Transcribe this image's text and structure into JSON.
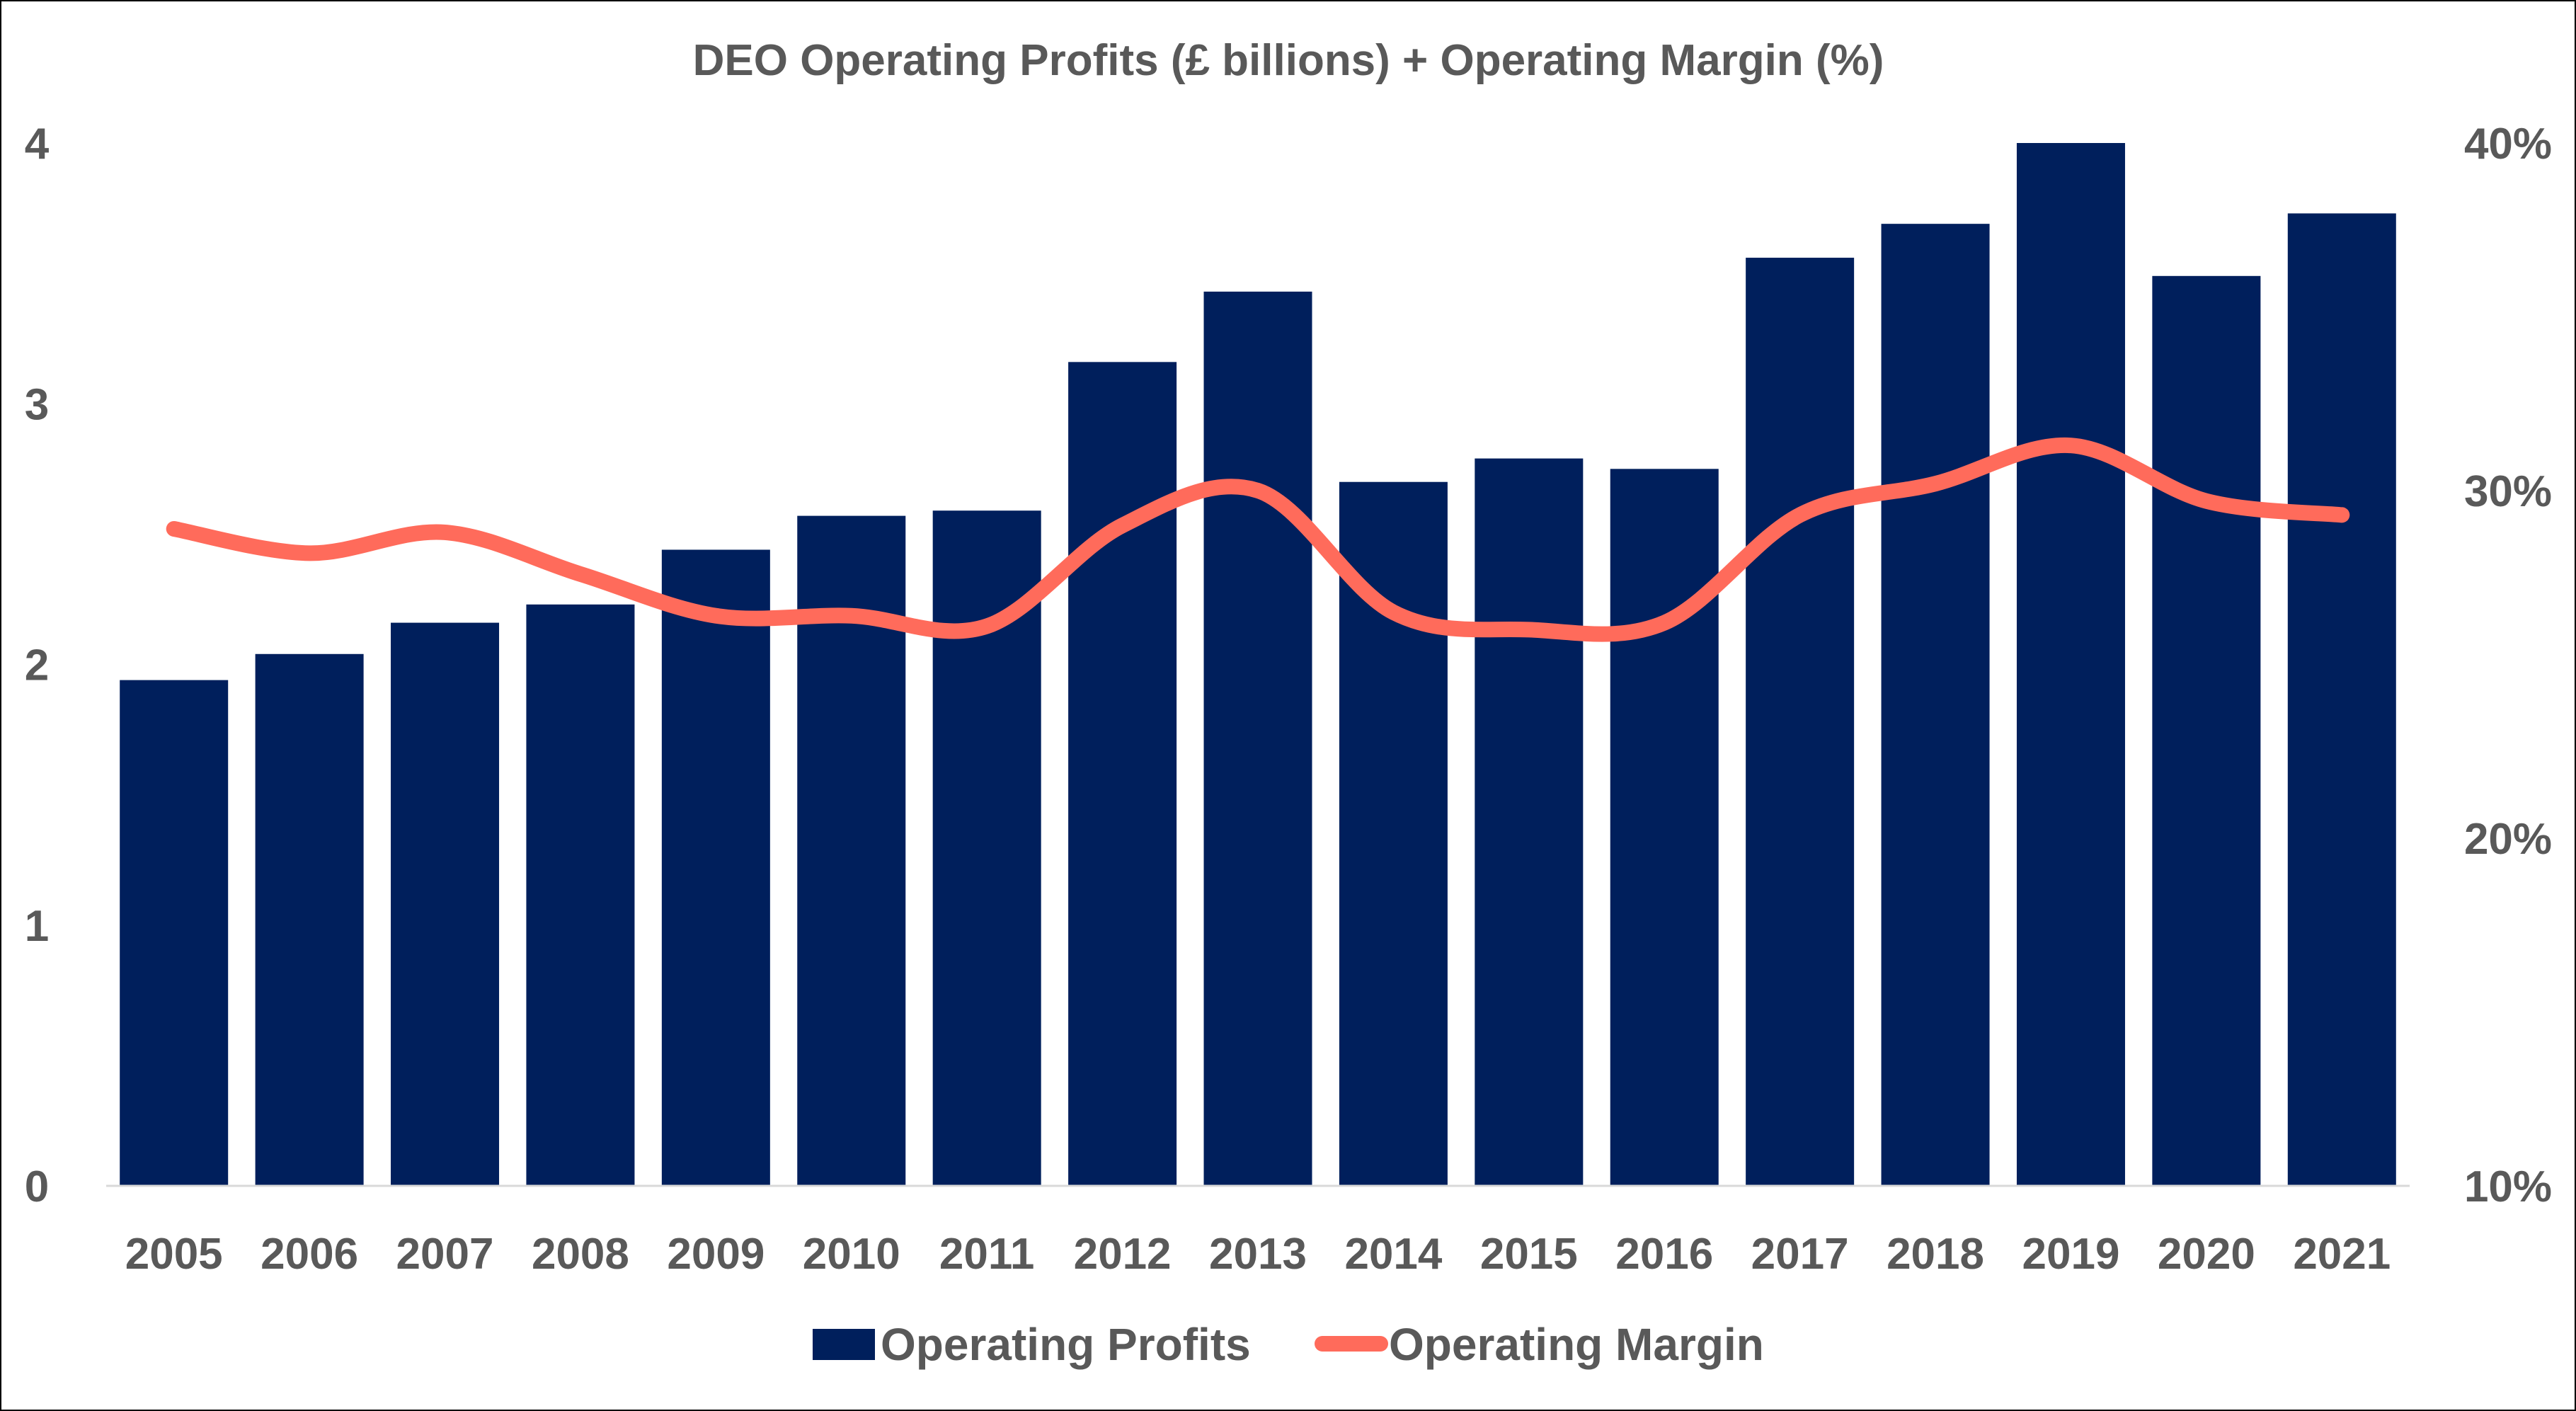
{
  "chart_data": {
    "type": "bar+line",
    "title": "DEO Operating Profits (£ billions) + Operating Margin (%)",
    "categories": [
      "2005",
      "2006",
      "2007",
      "2008",
      "2009",
      "2010",
      "2011",
      "2012",
      "2013",
      "2014",
      "2015",
      "2016",
      "2017",
      "2018",
      "2019",
      "2020",
      "2021"
    ],
    "series": [
      {
        "name": "Operating Profits",
        "type": "bar",
        "axis": "left",
        "color": "#001F5C",
        "values": [
          1.94,
          2.04,
          2.16,
          2.23,
          2.44,
          2.57,
          2.59,
          3.16,
          3.43,
          2.7,
          2.79,
          2.75,
          3.56,
          3.69,
          4.0,
          3.49,
          3.73
        ]
      },
      {
        "name": "Operating Margin",
        "type": "line",
        "axis": "right",
        "color": "#FF6B5B",
        "values": [
          28.9,
          28.2,
          28.8,
          27.6,
          26.4,
          26.4,
          26.1,
          29.0,
          30.0,
          26.5,
          26.0,
          26.2,
          29.3,
          30.2,
          31.3,
          29.7,
          29.3
        ]
      }
    ],
    "y_left": {
      "ticks": [
        0,
        1,
        2,
        3,
        4
      ],
      "tick_labels": [
        "0",
        "1",
        "2",
        "3",
        "4"
      ],
      "range": [
        0,
        4
      ]
    },
    "y_right": {
      "ticks": [
        10,
        20,
        30,
        40
      ],
      "tick_labels": [
        "10%",
        "20%",
        "30%",
        "40%"
      ],
      "range": [
        10,
        40
      ]
    },
    "grid": false,
    "legend": "bottom-center"
  }
}
